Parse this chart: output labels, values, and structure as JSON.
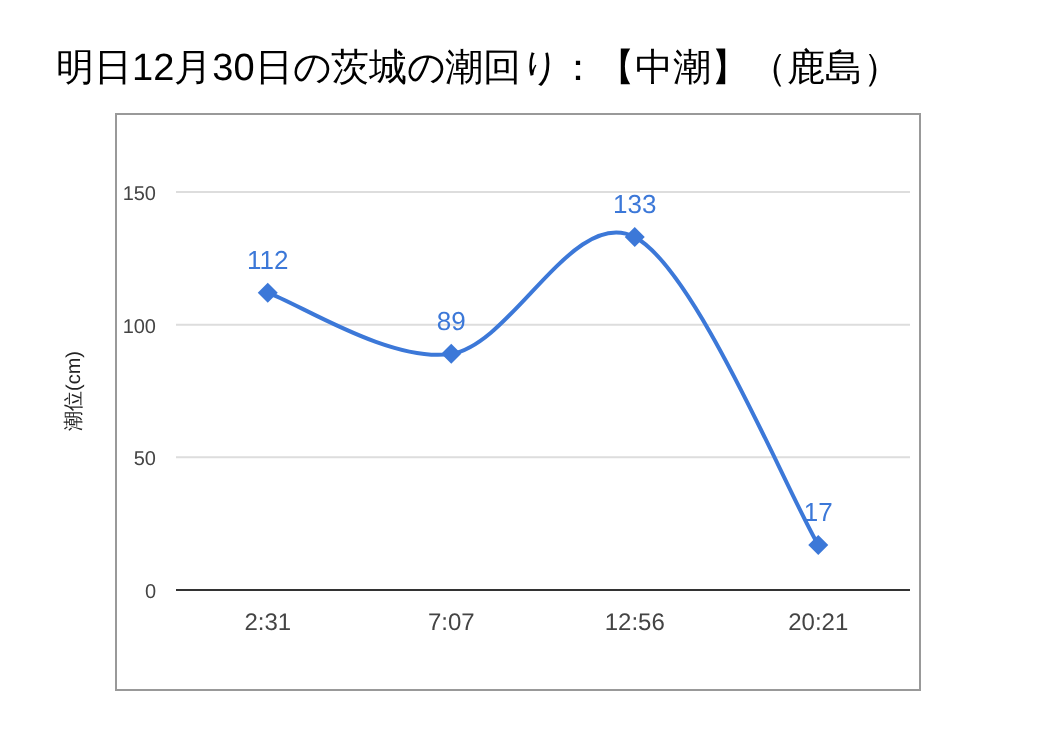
{
  "chart_data": {
    "type": "line",
    "title": "明日12月30日の茨城の潮回り：【中潮】（鹿島）",
    "ylabel": "潮位(cm)",
    "categories": [
      "2:31",
      "7:07",
      "12:56",
      "20:21"
    ],
    "series": [
      {
        "color": "#3c78d8",
        "values": [
          112,
          89,
          133,
          17
        ]
      }
    ],
    "ylim": [
      0,
      150
    ],
    "yticks": [
      0,
      50,
      100,
      150
    ],
    "grid": "y",
    "marker": "diamond",
    "line_style": "solid",
    "data_labels": true
  }
}
